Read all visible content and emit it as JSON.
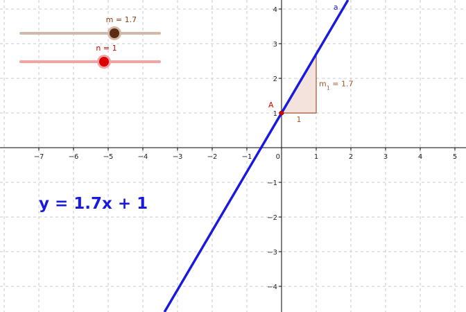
{
  "sliders": [
    {
      "name": "m",
      "label": "m = 1.7",
      "value": 1.7,
      "min": -5,
      "max": 5,
      "track_color": "#d2b8a8",
      "knob_color": "#5b2c11",
      "label_color": "#8b3a10"
    },
    {
      "name": "n",
      "label": "n = 1",
      "value": 1,
      "min": -5,
      "max": 5,
      "track_color": "#f4a3a3",
      "knob_color": "#dd0000",
      "label_color": "#cc0000"
    }
  ],
  "equation": {
    "text": "y = 1.7x + 1",
    "color": "#1a1adf"
  },
  "graph": {
    "x_ticks": [
      "−7",
      "−6",
      "−5",
      "−4",
      "−3",
      "−2",
      "−1",
      "0",
      "1",
      "2",
      "3",
      "4",
      "5"
    ],
    "y_ticks": [
      "4",
      "3",
      "2",
      "1",
      "−1",
      "−2",
      "−3",
      "−4"
    ],
    "line": {
      "label": "a",
      "slope": 1.7,
      "intercept": 1,
      "color": "#1a1adf"
    },
    "point": {
      "label": "A",
      "x": 0,
      "y": 1,
      "color": "#dd0000"
    },
    "slope_triangle": {
      "run_label": "1",
      "rise_label_main": "m",
      "rise_label_sub": "1",
      "rise_label_value": " = 1.7",
      "color": "#a0522d",
      "fill": "#f3e3dc"
    }
  }
}
